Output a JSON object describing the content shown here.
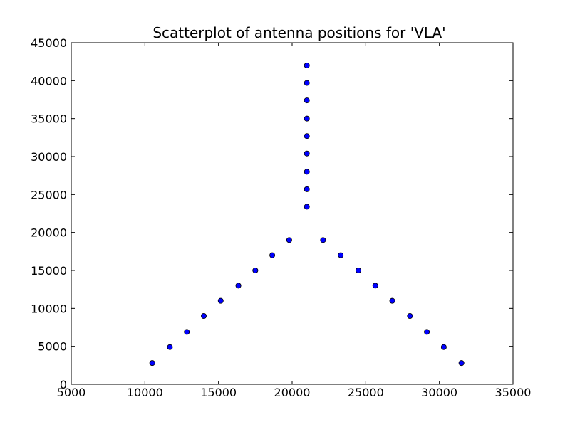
{
  "chart_data": {
    "type": "scatter",
    "title": "Scatterplot of antenna positions for 'VLA'",
    "xlabel": "",
    "ylabel": "",
    "xlim": [
      5000,
      35000
    ],
    "ylim": [
      0,
      45000
    ],
    "xticks": [
      "5000",
      "10000",
      "15000",
      "20000",
      "25000",
      "30000",
      "35000"
    ],
    "yticks": [
      "0",
      "5000",
      "10000",
      "15000",
      "20000",
      "25000",
      "30000",
      "35000",
      "40000",
      "45000"
    ],
    "grid": false,
    "legend": "none",
    "marker_color": "#0000ff",
    "series": [
      {
        "points": [
          [
            21000,
            42000
          ],
          [
            21000,
            39700
          ],
          [
            21000,
            37400
          ],
          [
            21000,
            35000
          ],
          [
            21000,
            32700
          ],
          [
            21000,
            30400
          ],
          [
            21000,
            28000
          ],
          [
            21000,
            25700
          ],
          [
            21000,
            23400
          ],
          [
            19800,
            19000
          ],
          [
            18650,
            17000
          ],
          [
            17500,
            15000
          ],
          [
            16350,
            13000
          ],
          [
            15150,
            11000
          ],
          [
            14000,
            9000
          ],
          [
            12850,
            6900
          ],
          [
            11700,
            4900
          ],
          [
            10500,
            2800
          ],
          [
            22100,
            19000
          ],
          [
            23300,
            17000
          ],
          [
            24500,
            15000
          ],
          [
            25650,
            13000
          ],
          [
            26800,
            11000
          ],
          [
            28000,
            9000
          ],
          [
            29150,
            6900
          ],
          [
            30300,
            4900
          ],
          [
            31500,
            2800
          ]
        ]
      }
    ]
  }
}
